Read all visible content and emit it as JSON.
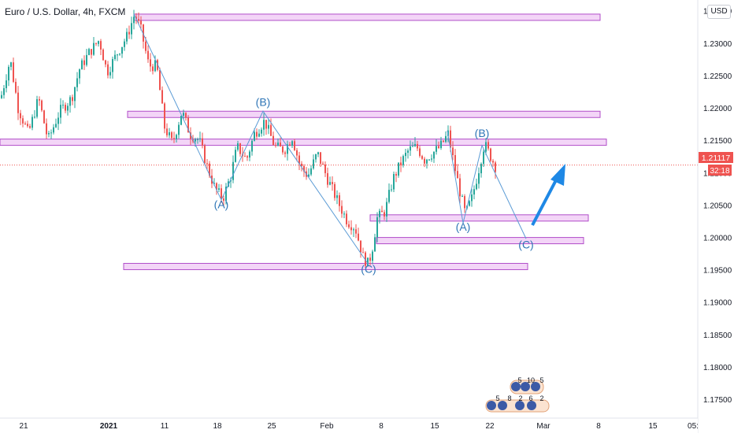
{
  "header": {
    "symbol_title": "Euro / U.S. Dollar, 4h, FXCM",
    "currency": "USD"
  },
  "price_tag": {
    "price": "1.21117",
    "countdown": "32:18"
  },
  "chart_data": {
    "type": "candlestick",
    "title": "Euro / U.S. Dollar, 4h, FXCM",
    "ylim": [
      1.1715,
      1.2352
    ],
    "y_ticks": [
      "1.23500",
      "1.23000",
      "1.22500",
      "1.22000",
      "1.21500",
      "1.21000",
      "1.20500",
      "1.20000",
      "1.19500",
      "1.19000",
      "1.18500",
      "1.18000",
      "1.17500"
    ],
    "x_ticks": [
      "21",
      "2021",
      "11",
      "18",
      "25",
      "Feb",
      "8",
      "15",
      "22",
      "Mar",
      "8",
      "15",
      "22",
      "05:"
    ],
    "last_price": 1.21117,
    "price_path": [
      [
        0,
        1.2215
      ],
      [
        12,
        1.2275
      ],
      [
        22,
        1.22
      ],
      [
        35,
        1.216
      ],
      [
        48,
        1.2215
      ],
      [
        60,
        1.215
      ],
      [
        75,
        1.2195
      ],
      [
        90,
        1.2215
      ],
      [
        100,
        1.226
      ],
      [
        112,
        1.2285
      ],
      [
        125,
        1.2305
      ],
      [
        135,
        1.2255
      ],
      [
        148,
        1.2285
      ],
      [
        160,
        1.231
      ],
      [
        170,
        1.2345
      ],
      [
        178,
        1.232
      ],
      [
        188,
        1.2265
      ],
      [
        198,
        1.2265
      ],
      [
        208,
        1.217
      ],
      [
        218,
        1.2145
      ],
      [
        230,
        1.2195
      ],
      [
        240,
        1.216
      ],
      [
        252,
        1.215
      ],
      [
        262,
        1.211
      ],
      [
        272,
        1.2075
      ],
      [
        282,
        1.206
      ],
      [
        292,
        1.2095
      ],
      [
        300,
        1.214
      ],
      [
        312,
        1.212
      ],
      [
        322,
        1.216
      ],
      [
        335,
        1.218
      ],
      [
        348,
        1.214
      ],
      [
        360,
        1.2135
      ],
      [
        370,
        1.2155
      ],
      [
        380,
        1.211
      ],
      [
        390,
        1.2095
      ],
      [
        402,
        1.213
      ],
      [
        415,
        1.209
      ],
      [
        428,
        1.2055
      ],
      [
        440,
        1.2025
      ],
      [
        450,
        1.2015
      ],
      [
        460,
        1.197
      ],
      [
        467,
        1.1958
      ],
      [
        472,
        1.1985
      ],
      [
        478,
        1.203
      ],
      [
        488,
        1.204
      ],
      [
        498,
        1.209
      ],
      [
        508,
        1.2115
      ],
      [
        518,
        1.2135
      ],
      [
        528,
        1.214
      ],
      [
        538,
        1.212
      ],
      [
        548,
        1.213
      ],
      [
        558,
        1.214
      ],
      [
        568,
        1.216
      ],
      [
        576,
        1.211
      ],
      [
        584,
        1.2065
      ],
      [
        590,
        1.2035
      ],
      [
        598,
        1.206
      ],
      [
        606,
        1.21
      ],
      [
        614,
        1.2145
      ],
      [
        622,
        1.2125
      ],
      [
        628,
        1.211
      ]
    ],
    "wave_annotations": [
      {
        "label": "(A)",
        "x": "Jan 18",
        "y": 1.2045
      },
      {
        "label": "(B)",
        "x": "Jan 24",
        "y": 1.2203
      },
      {
        "label": "(C)",
        "x": "Feb 4",
        "y": 1.1945
      },
      {
        "label": "(A)",
        "x": "Feb 19",
        "y": 1.201
      },
      {
        "label": "(B)",
        "x": "Feb 21",
        "y": 1.2155
      },
      {
        "label": "(C)",
        "x": "Mar 1",
        "y": 1.1983
      }
    ],
    "zones": [
      {
        "x_from": "Jan 5",
        "x_to": "Mar 12",
        "y": 1.234
      },
      {
        "x_from": "Jan 2",
        "x_to": "Mar 12",
        "y": 1.219
      },
      {
        "x_from": "Dec 14",
        "x_to": "Mar 13",
        "y": 1.2147
      },
      {
        "x_from": "Feb 7",
        "x_to": "Mar 10",
        "y": 1.203
      },
      {
        "x_from": "Feb 10",
        "x_to": "Mar 9",
        "y": 1.1995
      },
      {
        "x_from": "Jan 1",
        "x_to": "Feb 28",
        "y": 1.1955
      }
    ],
    "colors": {
      "up": "#26a69a",
      "down": "#ef5350",
      "zone_fill": "#f3d5f7",
      "zone_stroke": "#b14ec9",
      "wave_line": "#5b9bd5",
      "arrow": "#1e88e5",
      "label": "#2e75b6"
    }
  },
  "indicators": {
    "row1": [
      "5",
      "10",
      "5"
    ],
    "row2": [
      "5",
      "8",
      "2",
      "6",
      "2"
    ]
  }
}
